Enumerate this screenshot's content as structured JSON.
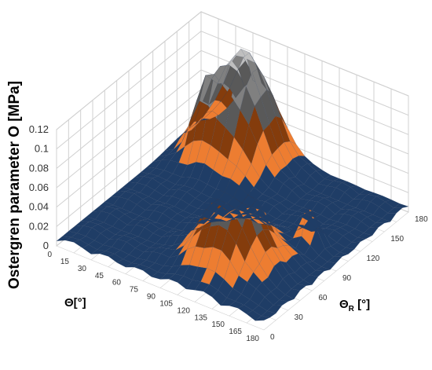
{
  "chart_data": {
    "type": "surface",
    "zlabel": "Ostergren parameter O [MPa]",
    "xlabel": "Θ[°]",
    "ylabel_main": "Θ",
    "ylabel_sub": "R",
    "ylabel_unit": " [°]",
    "x_ticks": [
      "0",
      "15",
      "30",
      "45",
      "60",
      "75",
      "90",
      "105",
      "120",
      "135",
      "150",
      "165",
      "180"
    ],
    "y_ticks": [
      "0",
      "30",
      "60",
      "90",
      "120",
      "150",
      "180"
    ],
    "z_ticks": [
      "0",
      "0.02",
      "0.04",
      "0.06",
      "0.08",
      "0.1",
      "0.12"
    ],
    "zlim": [
      0,
      0.12
    ],
    "band_colors": [
      "#5b9bd5",
      "#1f3d66",
      "#ed7d31",
      "#843c0c",
      "#595959",
      "#808080",
      "#bfbfbf",
      "#ffc000"
    ],
    "band_edges": [
      0.0,
      0.02,
      0.04,
      0.06,
      0.08,
      0.1,
      0.12
    ],
    "grid": true,
    "peaks": [
      {
        "theta": 50,
        "theta_r": 160,
        "value": 0.11,
        "width": 20
      },
      {
        "theta": 120,
        "theta_r": 50,
        "value": 0.085,
        "width": 20
      },
      {
        "theta": 30,
        "theta_r": 140,
        "value": 0.045,
        "width": 8
      },
      {
        "theta": 150,
        "theta_r": 100,
        "value": 0.04,
        "width": 6
      }
    ],
    "baseline": 0.005
  },
  "colors": {
    "grid": "#d0d0d0",
    "wall": "#ffffff",
    "edge": "rgba(40,60,90,0.35)"
  }
}
